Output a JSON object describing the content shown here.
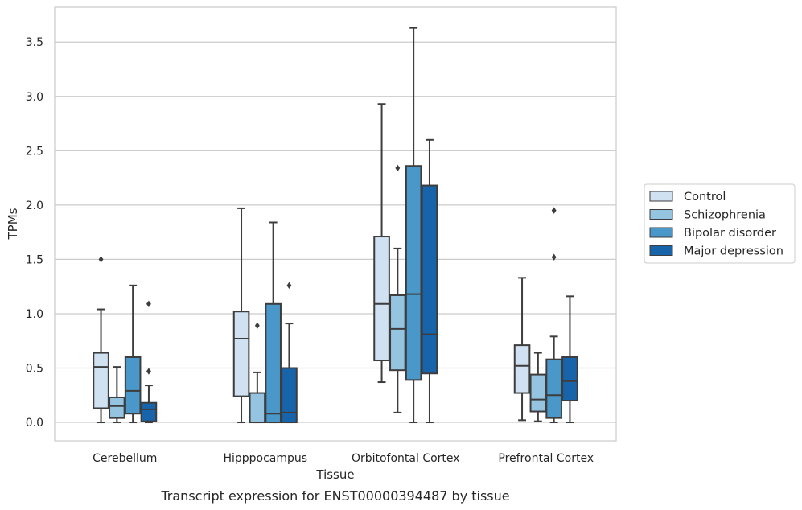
{
  "caption": "Transcript expression for ENST00000394487 by tissue",
  "chart_data": {
    "type": "box",
    "title": "",
    "xlabel": "Tissue",
    "ylabel": "TPMs",
    "ylim": [
      -0.17,
      3.82
    ],
    "yticks": [
      "0.0",
      "0.5",
      "1.0",
      "1.5",
      "2.0",
      "2.5",
      "3.0",
      "3.5"
    ],
    "grid": true,
    "legend_position": "right",
    "categories": [
      "Cerebellum",
      "Hipppocampus",
      "Orbitofontal Cortex",
      "Prefrontal Cortex"
    ],
    "series": [
      {
        "name": "Control",
        "color": "#d0e1f2",
        "boxes": [
          {
            "whislo": 0.0,
            "q1": 0.13,
            "med": 0.51,
            "q3": 0.64,
            "whishi": 1.04,
            "fliers": [
              1.5
            ]
          },
          {
            "whislo": 0.0,
            "q1": 0.24,
            "med": 0.77,
            "q3": 1.02,
            "whishi": 1.97,
            "fliers": []
          },
          {
            "whislo": 0.37,
            "q1": 0.57,
            "med": 1.09,
            "q3": 1.71,
            "whishi": 2.93,
            "fliers": []
          },
          {
            "whislo": 0.02,
            "q1": 0.27,
            "med": 0.52,
            "q3": 0.71,
            "whishi": 1.33,
            "fliers": []
          }
        ]
      },
      {
        "name": "Schizophrenia",
        "color": "#94c4df",
        "boxes": [
          {
            "whislo": 0.0,
            "q1": 0.04,
            "med": 0.15,
            "q3": 0.23,
            "whishi": 0.51,
            "fliers": []
          },
          {
            "whislo": 0.0,
            "q1": 0.0,
            "med": 0.0,
            "q3": 0.27,
            "whishi": 0.46,
            "fliers": [
              0.89
            ]
          },
          {
            "whislo": 0.09,
            "q1": 0.48,
            "med": 0.86,
            "q3": 1.17,
            "whishi": 1.6,
            "fliers": [
              2.34
            ]
          },
          {
            "whislo": 0.01,
            "q1": 0.1,
            "med": 0.21,
            "q3": 0.44,
            "whishi": 0.64,
            "fliers": []
          }
        ]
      },
      {
        "name": "Bipolar disorder",
        "color": "#4a98c9",
        "boxes": [
          {
            "whislo": 0.0,
            "q1": 0.08,
            "med": 0.29,
            "q3": 0.6,
            "whishi": 1.26,
            "fliers": []
          },
          {
            "whislo": 0.0,
            "q1": 0.0,
            "med": 0.08,
            "q3": 1.09,
            "whishi": 1.84,
            "fliers": []
          },
          {
            "whislo": 0.0,
            "q1": 0.39,
            "med": 1.18,
            "q3": 2.36,
            "whishi": 3.63,
            "fliers": []
          },
          {
            "whislo": 0.0,
            "q1": 0.04,
            "med": 0.25,
            "q3": 0.58,
            "whishi": 0.79,
            "fliers": [
              1.52,
              1.95
            ]
          }
        ]
      },
      {
        "name": "Major depression",
        "color": "#1764ab",
        "boxes": [
          {
            "whislo": 0.0,
            "q1": 0.01,
            "med": 0.12,
            "q3": 0.18,
            "whishi": 0.34,
            "fliers": [
              0.47,
              1.09
            ]
          },
          {
            "whislo": 0.0,
            "q1": 0.0,
            "med": 0.09,
            "q3": 0.5,
            "whishi": 0.91,
            "fliers": [
              1.26
            ]
          },
          {
            "whislo": 0.0,
            "q1": 0.45,
            "med": 0.81,
            "q3": 2.18,
            "whishi": 2.6,
            "fliers": []
          },
          {
            "whislo": 0.0,
            "q1": 0.2,
            "med": 0.38,
            "q3": 0.6,
            "whishi": 1.16,
            "fliers": []
          }
        ]
      }
    ]
  }
}
